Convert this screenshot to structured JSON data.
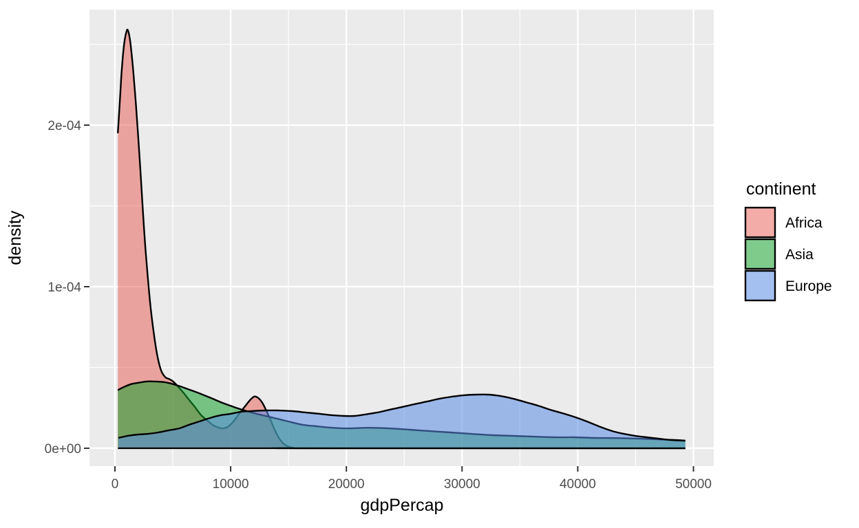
{
  "figure": {
    "background": "#FFFFFF"
  },
  "legend": {
    "title": "continent",
    "position": "right",
    "items": [
      {
        "label": "Africa"
      },
      {
        "label": "Asia"
      },
      {
        "label": "Europe"
      }
    ]
  },
  "chart_data": {
    "type": "area",
    "subtype": "density",
    "title": "",
    "xlabel": "gdpPercap",
    "ylabel": "density",
    "xlim": [
      -2200,
      51800
    ],
    "ylim": [
      -1.1e-05,
      0.000272
    ],
    "grid": true,
    "panel_bg": "#EBEBEB",
    "grid_color": "#FFFFFF",
    "tick_mark_color": "#333333",
    "tick_label_color": "#4D4D4D",
    "outline_color": "#000000",
    "x_breaks": [
      0,
      10000,
      20000,
      30000,
      40000,
      50000
    ],
    "x_labels": [
      "0",
      "10000",
      "20000",
      "30000",
      "40000",
      "50000"
    ],
    "x_minor_breaks": [
      5000,
      15000,
      25000,
      35000,
      45000
    ],
    "y_breaks": [
      0,
      0.0001,
      0.0002
    ],
    "y_labels": [
      "0e+00",
      "1e-04",
      "2e-04"
    ],
    "y_minor_breaks": [
      5e-05,
      0.00015,
      0.00025
    ],
    "series": [
      {
        "name": "Africa",
        "fill": "#E86056",
        "fill_opacity": 0.52,
        "points": [
          [
            250,
            0.000195
          ],
          [
            400,
            0.000212
          ],
          [
            550,
            0.00023
          ],
          [
            700,
            0.000244
          ],
          [
            850,
            0.000253
          ],
          [
            1000,
            0.000258
          ],
          [
            1100,
            0.000259
          ],
          [
            1250,
            0.000255
          ],
          [
            1400,
            0.000247
          ],
          [
            1600,
            0.000232
          ],
          [
            1800,
            0.000214
          ],
          [
            2000,
            0.000194
          ],
          [
            2200,
            0.000172
          ],
          [
            2400,
            0.000149
          ],
          [
            2600,
            0.000127
          ],
          [
            2850,
            0.000105
          ],
          [
            3100,
            8.6e-05
          ],
          [
            3400,
            6.9e-05
          ],
          [
            3700,
            5.6e-05
          ],
          [
            4000,
            4.8e-05
          ],
          [
            4350,
            4.4e-05
          ],
          [
            4700,
            4.28e-05
          ],
          [
            5000,
            4.15e-05
          ],
          [
            5350,
            3.9e-05
          ],
          [
            5900,
            3.45e-05
          ],
          [
            6400,
            3e-05
          ],
          [
            6900,
            2.56e-05
          ],
          [
            7450,
            2.05e-05
          ],
          [
            8000,
            1.7e-05
          ],
          [
            8500,
            1.42e-05
          ],
          [
            9000,
            1.27e-05
          ],
          [
            9400,
            1.23e-05
          ],
          [
            9800,
            1.35e-05
          ],
          [
            10200,
            1.62e-05
          ],
          [
            10700,
            2.1e-05
          ],
          [
            11250,
            2.6e-05
          ],
          [
            11700,
            3e-05
          ],
          [
            12050,
            3.2e-05
          ],
          [
            12400,
            3.1e-05
          ],
          [
            12750,
            2.8e-05
          ],
          [
            13100,
            2.3e-05
          ],
          [
            13450,
            1.75e-05
          ],
          [
            13800,
            1.15e-05
          ],
          [
            14150,
            6.6e-06
          ],
          [
            14500,
            3.3e-06
          ],
          [
            14900,
            1.3e-06
          ],
          [
            15400,
            4e-07
          ],
          [
            16300,
            0
          ],
          [
            49300,
            0
          ]
        ]
      },
      {
        "name": "Asia",
        "fill": "#14A02D",
        "fill_opacity": 0.55,
        "points": [
          [
            250,
            3.6e-05
          ],
          [
            800,
            3.8e-05
          ],
          [
            1400,
            3.97e-05
          ],
          [
            2000,
            4.05e-05
          ],
          [
            2700,
            4.13e-05
          ],
          [
            3450,
            4.13e-05
          ],
          [
            4350,
            4.08e-05
          ],
          [
            5350,
            3.9e-05
          ],
          [
            6300,
            3.66e-05
          ],
          [
            7300,
            3.4e-05
          ],
          [
            8300,
            3.11e-05
          ],
          [
            9300,
            2.81e-05
          ],
          [
            10300,
            2.55e-05
          ],
          [
            11200,
            2.34e-05
          ],
          [
            12250,
            2.13e-05
          ],
          [
            13250,
            1.96e-05
          ],
          [
            14250,
            1.79e-05
          ],
          [
            15200,
            1.62e-05
          ],
          [
            16250,
            1.45e-05
          ],
          [
            17400,
            1.36e-05
          ],
          [
            18600,
            1.28e-05
          ],
          [
            20100,
            1.23e-05
          ],
          [
            21900,
            1.27e-05
          ],
          [
            23700,
            1.23e-05
          ],
          [
            25450,
            1.15e-05
          ],
          [
            27250,
            1.06e-05
          ],
          [
            29000,
            9.8e-06
          ],
          [
            30800,
            8.9e-06
          ],
          [
            32600,
            8.1e-06
          ],
          [
            34350,
            7.7e-06
          ],
          [
            36150,
            7.2e-06
          ],
          [
            37950,
            6.8e-06
          ],
          [
            39700,
            6.8e-06
          ],
          [
            41500,
            6.4e-06
          ],
          [
            43300,
            6.3e-06
          ],
          [
            45050,
            6e-06
          ],
          [
            46850,
            5.5e-06
          ],
          [
            48350,
            5.1e-06
          ],
          [
            49300,
            4.7e-06
          ]
        ]
      },
      {
        "name": "Europe",
        "fill": "#5A8CE6",
        "fill_opacity": 0.55,
        "points": [
          [
            300,
            6.4e-06
          ],
          [
            1100,
            7.7e-06
          ],
          [
            2000,
            8.5e-06
          ],
          [
            2850,
            8.9e-06
          ],
          [
            3750,
            9.8e-06
          ],
          [
            4650,
            1.11e-05
          ],
          [
            5550,
            1.23e-05
          ],
          [
            6400,
            1.45e-05
          ],
          [
            7300,
            1.66e-05
          ],
          [
            8200,
            1.87e-05
          ],
          [
            9100,
            2.04e-05
          ],
          [
            10000,
            2.13e-05
          ],
          [
            10900,
            2.26e-05
          ],
          [
            11800,
            2.3e-05
          ],
          [
            13000,
            2.34e-05
          ],
          [
            14150,
            2.34e-05
          ],
          [
            15350,
            2.3e-05
          ],
          [
            16550,
            2.21e-05
          ],
          [
            17700,
            2.13e-05
          ],
          [
            18900,
            2.04e-05
          ],
          [
            19800,
            2e-05
          ],
          [
            20700,
            2e-05
          ],
          [
            21600,
            2.09e-05
          ],
          [
            22650,
            2.21e-05
          ],
          [
            23700,
            2.38e-05
          ],
          [
            24800,
            2.55e-05
          ],
          [
            25850,
            2.72e-05
          ],
          [
            26950,
            2.89e-05
          ],
          [
            28000,
            3.06e-05
          ],
          [
            29100,
            3.19e-05
          ],
          [
            30150,
            3.28e-05
          ],
          [
            31200,
            3.32e-05
          ],
          [
            32300,
            3.32e-05
          ],
          [
            33350,
            3.23e-05
          ],
          [
            34450,
            3.06e-05
          ],
          [
            35500,
            2.85e-05
          ],
          [
            36550,
            2.64e-05
          ],
          [
            37650,
            2.38e-05
          ],
          [
            38850,
            2.13e-05
          ],
          [
            40000,
            1.87e-05
          ],
          [
            41100,
            1.57e-05
          ],
          [
            42100,
            1.28e-05
          ],
          [
            43000,
            1.06e-05
          ],
          [
            44000,
            8.9e-06
          ],
          [
            44950,
            7.7e-06
          ],
          [
            45950,
            6.8e-06
          ],
          [
            46950,
            6e-06
          ],
          [
            48050,
            5.1e-06
          ],
          [
            49300,
            4.7e-06
          ]
        ]
      }
    ]
  }
}
